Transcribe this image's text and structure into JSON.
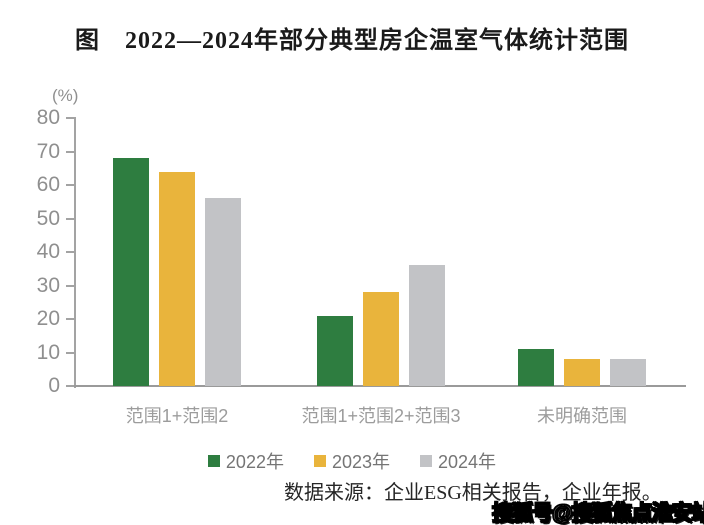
{
  "title": "图　2022—2024年部分典型房企温室气体统计范围",
  "chart_data": {
    "type": "bar",
    "title": "图　2022—2024年部分典型房企温室气体统计范围",
    "unit_label": "(%)",
    "xlabel": "",
    "ylabel": "(%)",
    "categories": [
      "范围1+范围2",
      "范围1+范围2+范围3",
      "未明确范围"
    ],
    "series": [
      {
        "name": "2022年",
        "color": "#2e7d40",
        "values": [
          68,
          21,
          11
        ]
      },
      {
        "name": "2023年",
        "color": "#e9b43c",
        "values": [
          64,
          28,
          8
        ]
      },
      {
        "name": "2024年",
        "color": "#c2c3c6",
        "values": [
          56,
          36,
          8
        ]
      }
    ],
    "ylim": [
      0,
      80
    ],
    "yticks": [
      0,
      10,
      20,
      30,
      40,
      50,
      60,
      70,
      80
    ],
    "grid": false,
    "legend_position": "bottom"
  },
  "source_note": "数据来源：企业ESG相关报告，企业年报。",
  "watermark": "搜狐号@搜狐焦点淮安站",
  "colors": {
    "axis": "#a3a3a3",
    "tick_text": "#8f8f8f",
    "category_text": "#9c9c9c",
    "legend_text": "#757575",
    "title_text": "#1a1a1a",
    "source_text": "#262626"
  }
}
